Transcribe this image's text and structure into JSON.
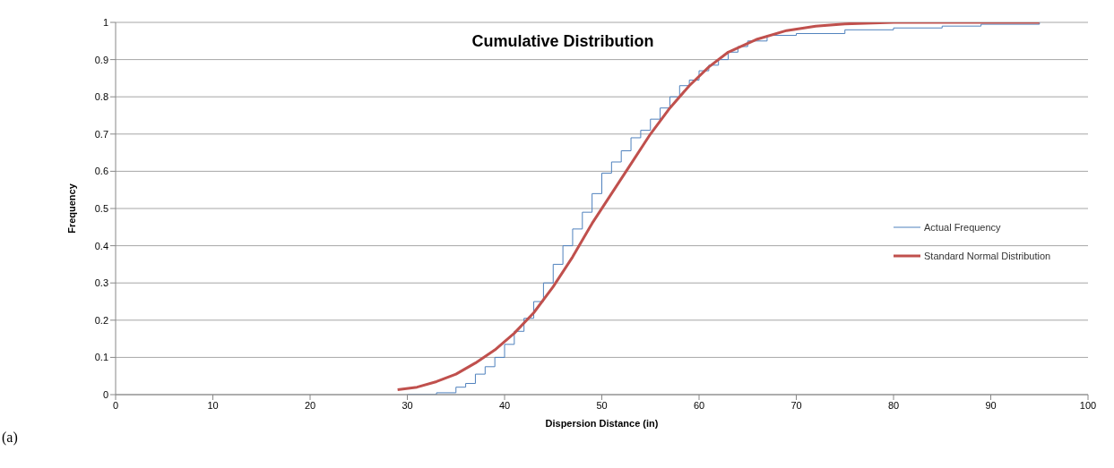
{
  "chart_data": {
    "type": "line",
    "title": "Cumulative Distribution",
    "xlabel": "Dispersion Distance (in)",
    "ylabel": "Frequency",
    "annotations": [
      "(a)"
    ],
    "xlim": [
      0,
      100
    ],
    "xticks": [
      0,
      10,
      20,
      30,
      40,
      50,
      60,
      70,
      80,
      90,
      100
    ],
    "ylim": [
      0,
      1
    ],
    "yticks": [
      0,
      0.1,
      0.2,
      0.3,
      0.4,
      0.5,
      0.6,
      0.7,
      0.8,
      0.9,
      1
    ],
    "grid": "y",
    "legend": "right",
    "series": [
      {
        "name": "Actual Frequency",
        "type": "step",
        "color": "#4f81bd",
        "x": [
          30,
          33,
          35,
          36,
          37,
          38,
          39,
          40,
          41,
          42,
          43,
          44,
          45,
          46,
          47,
          48,
          49,
          50,
          51,
          52,
          53,
          54,
          55,
          56,
          57,
          58,
          59,
          60,
          61,
          62,
          63,
          64,
          65,
          67,
          70,
          75,
          80,
          85,
          89,
          95
        ],
        "values": [
          0,
          0.005,
          0.02,
          0.03,
          0.055,
          0.075,
          0.1,
          0.135,
          0.17,
          0.205,
          0.25,
          0.3,
          0.35,
          0.4,
          0.445,
          0.49,
          0.54,
          0.595,
          0.625,
          0.655,
          0.69,
          0.71,
          0.74,
          0.77,
          0.8,
          0.83,
          0.845,
          0.87,
          0.885,
          0.9,
          0.92,
          0.935,
          0.95,
          0.965,
          0.97,
          0.98,
          0.985,
          0.99,
          0.995,
          1
        ]
      },
      {
        "name": "Standard Normal Distribution",
        "type": "line",
        "color": "#c0504d",
        "x": [
          29,
          31,
          33,
          35,
          37,
          39,
          41,
          43,
          45,
          47,
          49,
          51,
          53,
          55,
          57,
          59,
          61,
          63,
          66,
          69,
          72,
          75,
          80,
          85,
          90,
          95
        ],
        "values": [
          0.013,
          0.02,
          0.035,
          0.055,
          0.085,
          0.12,
          0.165,
          0.22,
          0.29,
          0.37,
          0.46,
          0.54,
          0.62,
          0.7,
          0.77,
          0.83,
          0.88,
          0.92,
          0.955,
          0.978,
          0.99,
          0.996,
          1,
          1,
          1,
          1
        ]
      }
    ]
  }
}
